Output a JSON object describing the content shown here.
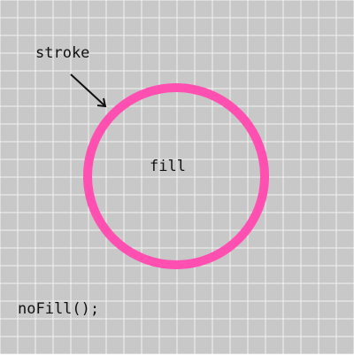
{
  "diagram": {
    "labels": {
      "stroke": "stroke",
      "fill": "fill",
      "code": "noFill();"
    },
    "colors": {
      "background": "#c8c8c8",
      "grid": "#f2f2f2",
      "circle_stroke": "#ff4fb0",
      "arrow": "#111111",
      "text": "#111111"
    },
    "icons": {
      "arrow": "arrow-down-right-icon",
      "circle": "circle-outline-icon"
    }
  }
}
